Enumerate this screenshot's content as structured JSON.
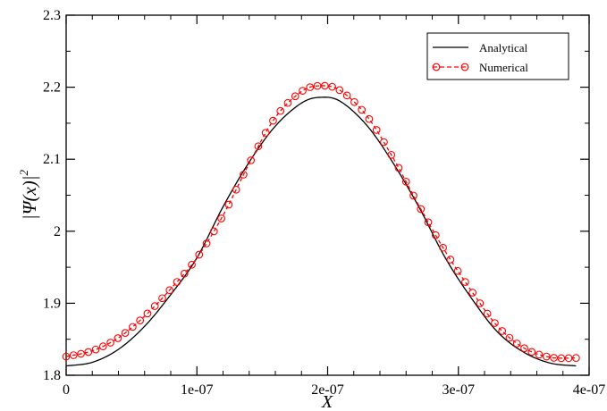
{
  "chart_data": {
    "type": "line",
    "xlabel": "X",
    "ylabel": "|Ψ(x)|",
    "ylabel_superscript": "2",
    "xlim": [
      0,
      4e-07
    ],
    "ylim": [
      1.8,
      2.3
    ],
    "x_ticks": [
      0,
      1e-07,
      2e-07,
      3e-07,
      4e-07
    ],
    "x_tick_labels": [
      "0",
      "1e-07",
      "2e-07",
      "3e-07",
      "4e-07"
    ],
    "y_ticks": [
      1.8,
      1.9,
      2.0,
      2.1,
      2.2,
      2.3
    ],
    "y_tick_labels": [
      "1.8",
      "1.9",
      "2",
      "2.1",
      "2.2",
      "2.3"
    ],
    "grid": false,
    "legend_position": "top-right",
    "series": [
      {
        "name": "Analytical",
        "color": "#000000",
        "style": "solid-line",
        "x": [
          0,
          2e-08,
          4e-08,
          6e-08,
          8e-08,
          1e-07,
          1.2e-07,
          1.4e-07,
          1.6e-07,
          1.8e-07,
          1.95e-07,
          2.1e-07,
          2.3e-07,
          2.5e-07,
          2.7e-07,
          2.9e-07,
          3.1e-07,
          3.3e-07,
          3.5e-07,
          3.7e-07,
          3.9e-07
        ],
        "y": [
          1.813,
          1.818,
          1.836,
          1.868,
          1.912,
          1.963,
          2.034,
          2.096,
          2.146,
          2.178,
          2.186,
          2.18,
          2.147,
          2.095,
          2.033,
          1.963,
          1.907,
          1.86,
          1.832,
          1.817,
          1.813
        ]
      },
      {
        "name": "Numerical",
        "color": "#ff0000",
        "style": "dashed-line-circle-markers",
        "x": [
          0,
          2e-08,
          4e-08,
          6e-08,
          8e-08,
          1e-07,
          1.2e-07,
          1.4e-07,
          1.6e-07,
          1.8e-07,
          1.95e-07,
          2.1e-07,
          2.3e-07,
          2.5e-07,
          2.7e-07,
          2.9e-07,
          3.1e-07,
          3.3e-07,
          3.5e-07,
          3.7e-07,
          3.9e-07
        ],
        "y": [
          1.826,
          1.834,
          1.852,
          1.882,
          1.92,
          1.963,
          2.022,
          2.094,
          2.158,
          2.194,
          2.202,
          2.195,
          2.16,
          2.102,
          2.035,
          1.972,
          1.917,
          1.868,
          1.838,
          1.825,
          1.824
        ]
      }
    ]
  }
}
